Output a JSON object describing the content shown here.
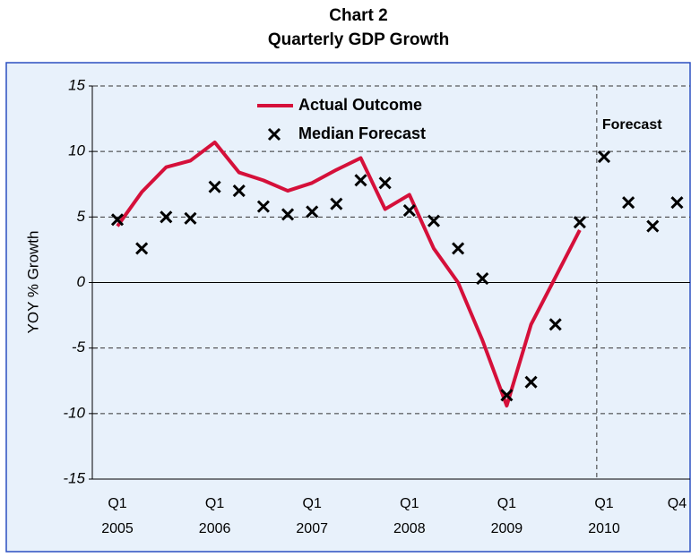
{
  "chart_data": {
    "type": "line",
    "title": "Chart 2",
    "subtitle": "Quarterly GDP Growth",
    "ylabel": "YOY % Growth",
    "annotation": "Forecast",
    "categories": [
      "Q1",
      null,
      null,
      null,
      "Q1",
      null,
      null,
      null,
      "Q1",
      null,
      null,
      null,
      "Q1",
      null,
      null,
      null,
      "Q1",
      null,
      null,
      null,
      "Q1",
      null,
      null,
      "Q4"
    ],
    "category_years": [
      "2005",
      null,
      null,
      null,
      "2006",
      null,
      null,
      null,
      "2007",
      null,
      null,
      null,
      "2008",
      null,
      null,
      null,
      "2009",
      null,
      null,
      null,
      "2010",
      null,
      null,
      null
    ],
    "series": [
      {
        "name": "Actual Outcome",
        "color": "#d5103a",
        "marker": "line",
        "values": [
          4.3,
          6.9,
          8.8,
          9.3,
          10.7,
          8.4,
          7.8,
          7.0,
          7.6,
          8.6,
          9.5,
          5.6,
          6.7,
          2.6,
          0.0,
          -4.4,
          -9.4,
          -3.2,
          0.4,
          4.0,
          null,
          null,
          null,
          null
        ]
      },
      {
        "name": "Median Forecast",
        "color": "#000000",
        "marker": "x",
        "values": [
          4.8,
          2.6,
          5.0,
          4.9,
          7.3,
          7.0,
          5.8,
          5.2,
          5.4,
          6.0,
          7.8,
          7.6,
          5.5,
          4.7,
          2.6,
          0.3,
          -8.6,
          -7.6,
          -3.2,
          4.6,
          9.6,
          6.1,
          4.3,
          6.1
        ]
      }
    ],
    "ylim": [
      -15,
      15
    ],
    "yticks": [
      -15,
      -10,
      -5,
      0,
      5,
      10,
      15
    ],
    "grid": true
  }
}
